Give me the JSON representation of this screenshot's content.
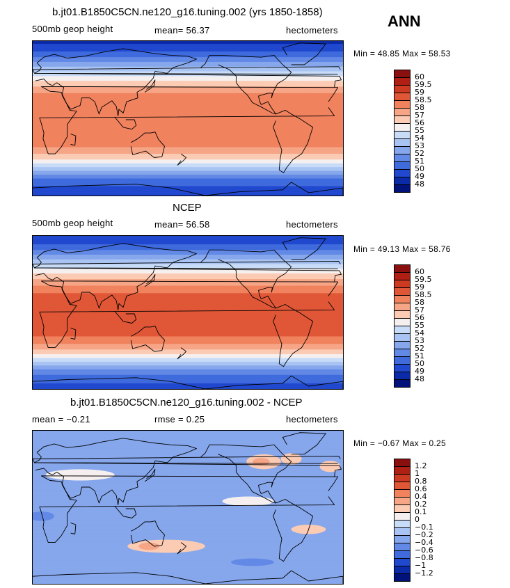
{
  "season": "ANN",
  "chart_data": [
    {
      "type": "heatmap",
      "title": "b.jt01.B1850C5CN.ne120_g16.tuning.002 (yrs 1850-1858)",
      "left_label": "500mb geop height",
      "center_label": "mean=  56.37",
      "units": "hectometers",
      "stats": "Min =  48.85 Max =  58.53",
      "mean": 56.37,
      "min": 48.85,
      "max": 58.53,
      "levels": [
        "60",
        "59.5",
        "59",
        "58.5",
        "58",
        "57",
        "56",
        "55",
        "54",
        "53",
        "52",
        "51",
        "50",
        "49",
        "48"
      ],
      "colors": [
        "#8a0f0f",
        "#b01f14",
        "#cc3a22",
        "#e05737",
        "#f0825e",
        "#f6a586",
        "#fbcbb4",
        "#f5f0ef",
        "#c8dcf8",
        "#a9c4f3",
        "#86a7ec",
        "#6289e5",
        "#3f6bdd",
        "#2149cf",
        "#0b2aa8",
        "#01127a"
      ],
      "profile": [
        [
          90,
          48.5
        ],
        [
          80,
          49.1
        ],
        [
          70,
          50.6
        ],
        [
          60,
          52.6
        ],
        [
          50,
          54.6
        ],
        [
          40,
          56.6
        ],
        [
          30,
          58.0
        ],
        [
          20,
          58.4
        ],
        [
          0,
          58.5
        ],
        [
          -20,
          58.4
        ],
        [
          -30,
          57.8
        ],
        [
          -40,
          56.0
        ],
        [
          -50,
          53.4
        ],
        [
          -60,
          51.0
        ],
        [
          -70,
          49.8
        ],
        [
          -80,
          49.2
        ],
        [
          -90,
          48.8
        ]
      ]
    },
    {
      "type": "heatmap",
      "title": "NCEP",
      "left_label": "500mb geop height",
      "center_label": "mean=  56.58",
      "units": "hectometers",
      "stats": "Min =  49.13 Max =  58.76",
      "mean": 56.58,
      "min": 49.13,
      "max": 58.76,
      "levels": [
        "60",
        "59.5",
        "59",
        "58.5",
        "58",
        "57",
        "56",
        "55",
        "54",
        "53",
        "52",
        "51",
        "50",
        "49",
        "48"
      ],
      "colors": [
        "#8a0f0f",
        "#b01f14",
        "#cc3a22",
        "#e05737",
        "#f0825e",
        "#f6a586",
        "#fbcbb4",
        "#f5f0ef",
        "#c8dcf8",
        "#a9c4f3",
        "#86a7ec",
        "#6289e5",
        "#3f6bdd",
        "#2149cf",
        "#0b2aa8",
        "#01127a"
      ],
      "profile": [
        [
          90,
          48.9
        ],
        [
          80,
          49.4
        ],
        [
          70,
          50.9
        ],
        [
          60,
          52.9
        ],
        [
          50,
          54.9
        ],
        [
          40,
          56.9
        ],
        [
          30,
          58.2
        ],
        [
          20,
          58.7
        ],
        [
          0,
          58.75
        ],
        [
          -20,
          58.6
        ],
        [
          -30,
          58.0
        ],
        [
          -40,
          56.3
        ],
        [
          -50,
          53.7
        ],
        [
          -60,
          51.3
        ],
        [
          -70,
          50.1
        ],
        [
          -80,
          49.5
        ],
        [
          -90,
          49.2
        ]
      ]
    },
    {
      "type": "heatmap",
      "title": "b.jt01.B1850C5CN.ne120_g16.tuning.002 - NCEP",
      "left_label": "mean =  −0.21",
      "center_label": "rmse =    0.25",
      "units": "hectometers",
      "stats": "Min =  −0.67 Max =    0.25",
      "mean": -0.21,
      "rmse": 0.25,
      "min": -0.67,
      "max": 0.25,
      "levels": [
        "1.2",
        "1",
        "0.8",
        "0.6",
        "0.4",
        "0.2",
        "0.1",
        "0",
        "−0.1",
        "−0.2",
        "−0.4",
        "−0.6",
        "−0.8",
        "−1",
        "−1.2"
      ],
      "colors": [
        "#8a0f0f",
        "#b01f14",
        "#cc3a22",
        "#e05737",
        "#f0825e",
        "#f6a586",
        "#fbcbb4",
        "#f5f0ef",
        "#c8dcf8",
        "#a9c4f3",
        "#86a7ec",
        "#6289e5",
        "#3f6bdd",
        "#2149cf",
        "#0b2aa8",
        "#01127a"
      ],
      "profile": [
        [
          90,
          -0.3
        ],
        [
          60,
          -0.3
        ],
        [
          30,
          -0.2
        ],
        [
          0,
          -0.25
        ],
        [
          -30,
          -0.2
        ],
        [
          -60,
          -0.3
        ],
        [
          -90,
          -0.3
        ]
      ]
    }
  ]
}
